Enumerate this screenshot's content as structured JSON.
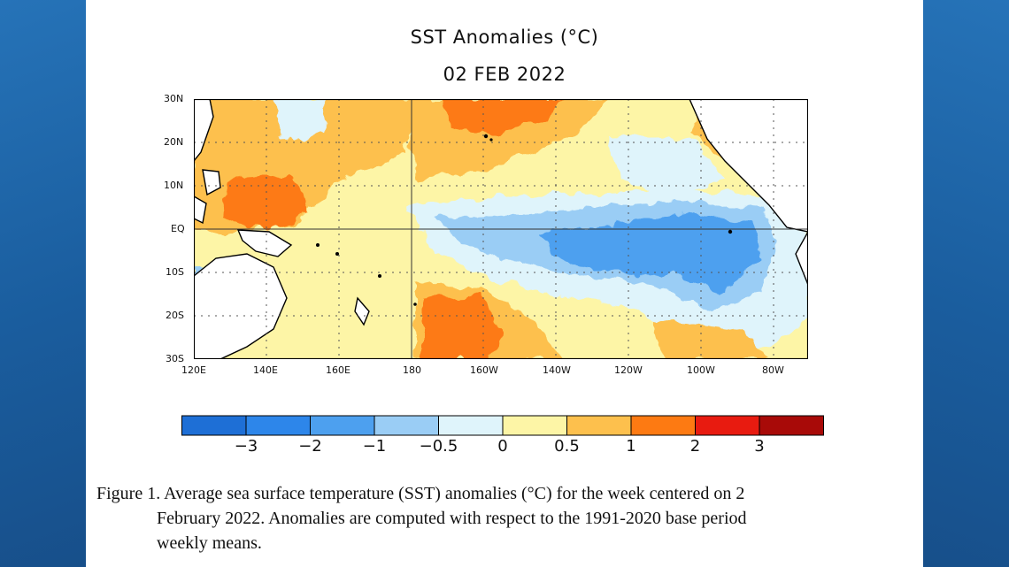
{
  "title": "SST Anomalies (°C)",
  "subtitle": "02 FEB 2022",
  "lat_labels": [
    "30N",
    "20N",
    "10N",
    "EQ",
    "10S",
    "20S",
    "30S"
  ],
  "lon_labels": [
    "120E",
    "140E",
    "160E",
    "180",
    "160W",
    "140W",
    "120W",
    "100W",
    "80W"
  ],
  "colorbar": {
    "colors": [
      "#1e6fd6",
      "#2d86ea",
      "#4da0ef",
      "#9acdf5",
      "#dff4fb",
      "#fdf5a6",
      "#fdc04d",
      "#fd7a12",
      "#e81b10",
      "#a80a08"
    ],
    "labels": [
      "−3",
      "−2",
      "−1",
      "−0.5",
      "0",
      "0.5",
      "1",
      "2",
      "3"
    ]
  },
  "caption": {
    "line1": "Figure 1. Average sea surface temperature (SST) anomalies (°C) for the week centered on 2",
    "line2": "February 2022.  Anomalies are computed with respect to the 1991-2020 base period",
    "line3": "weekly means."
  }
}
